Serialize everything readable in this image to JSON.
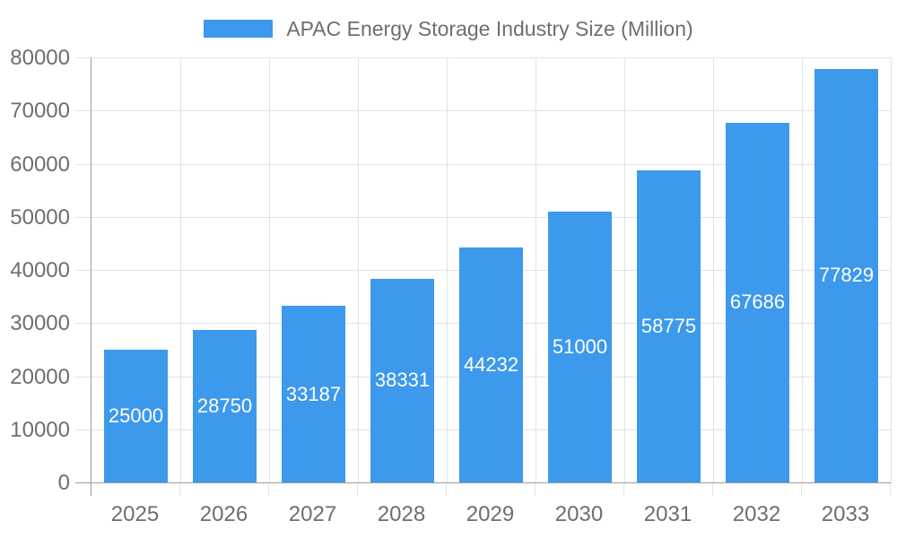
{
  "chart_data": {
    "type": "bar",
    "title": "APAC Energy Storage Industry Size (Million)",
    "categories": [
      "2025",
      "2026",
      "2027",
      "2028",
      "2029",
      "2030",
      "2031",
      "2032",
      "2033"
    ],
    "values": [
      25000,
      28750,
      33187,
      38331,
      44232,
      51000,
      58775,
      67686,
      77829
    ],
    "xlabel": "",
    "ylabel": "",
    "ylim": [
      0,
      80000
    ],
    "yticks": [
      0,
      10000,
      20000,
      30000,
      40000,
      50000,
      60000,
      70000,
      80000
    ],
    "grid": true,
    "legend_position": "top",
    "value_labels": "inside-center",
    "colors": {
      "bar": "#3C99EC",
      "grid": "#E3E3E3",
      "axis_line": "#9B9B9B",
      "axis_text": "#6E6E6E",
      "bar_label_text": "#FFFFFF"
    }
  }
}
